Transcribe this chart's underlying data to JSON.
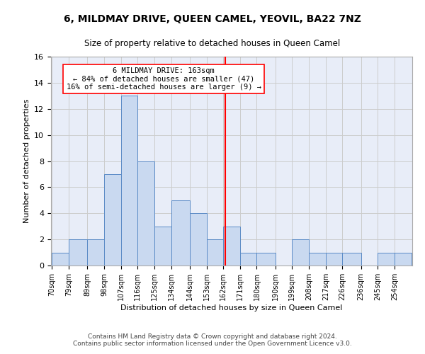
{
  "title": "6, MILDMAY DRIVE, QUEEN CAMEL, YEOVIL, BA22 7NZ",
  "subtitle": "Size of property relative to detached houses in Queen Camel",
  "xlabel": "Distribution of detached houses by size in Queen Camel",
  "ylabel": "Number of detached properties",
  "bin_labels": [
    "70sqm",
    "79sqm",
    "89sqm",
    "98sqm",
    "107sqm",
    "116sqm",
    "125sqm",
    "134sqm",
    "144sqm",
    "153sqm",
    "162sqm",
    "171sqm",
    "180sqm",
    "190sqm",
    "199sqm",
    "208sqm",
    "217sqm",
    "226sqm",
    "236sqm",
    "245sqm",
    "254sqm"
  ],
  "bin_edges": [
    70,
    79,
    89,
    98,
    107,
    116,
    125,
    134,
    144,
    153,
    162,
    171,
    180,
    190,
    199,
    208,
    217,
    226,
    236,
    245,
    254,
    263
  ],
  "counts": [
    1,
    2,
    2,
    7,
    13,
    8,
    3,
    5,
    4,
    2,
    3,
    1,
    1,
    0,
    2,
    1,
    1,
    1,
    0,
    1,
    1
  ],
  "bar_color": "#c9d9f0",
  "bar_edge_color": "#5a8ac6",
  "property_value": 163,
  "vline_color": "red",
  "annotation_text": "6 MILDMAY DRIVE: 163sqm\n← 84% of detached houses are smaller (47)\n16% of semi-detached houses are larger (9) →",
  "annotation_box_color": "white",
  "annotation_box_edge": "red",
  "ylim": [
    0,
    16
  ],
  "yticks": [
    0,
    2,
    4,
    6,
    8,
    10,
    12,
    14,
    16
  ],
  "grid_color": "#cccccc",
  "background_color": "#e8edf8",
  "footer_line1": "Contains HM Land Registry data © Crown copyright and database right 2024.",
  "footer_line2": "Contains public sector information licensed under the Open Government Licence v3.0."
}
